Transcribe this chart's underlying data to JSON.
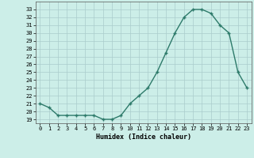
{
  "x": [
    0,
    1,
    2,
    3,
    4,
    5,
    6,
    7,
    8,
    9,
    10,
    11,
    12,
    13,
    14,
    15,
    16,
    17,
    18,
    19,
    20,
    21,
    22,
    23
  ],
  "y": [
    21,
    20.5,
    19.5,
    19.5,
    19.5,
    19.5,
    19.5,
    19,
    19,
    19.5,
    21,
    22,
    23,
    25,
    27.5,
    30,
    32,
    33,
    33,
    32.5,
    31,
    30,
    25,
    23
  ],
  "line_color": "#2d7a6a",
  "marker_color": "#2d7a6a",
  "bg_color": "#cceee8",
  "grid_color": "#aacccc",
  "xlabel": "Humidex (Indice chaleur)",
  "xlim": [
    -0.5,
    23.5
  ],
  "ylim": [
    18.5,
    34
  ],
  "yticks": [
    19,
    20,
    21,
    22,
    23,
    24,
    25,
    26,
    27,
    28,
    29,
    30,
    31,
    32,
    33
  ],
  "xticks": [
    0,
    1,
    2,
    3,
    4,
    5,
    6,
    7,
    8,
    9,
    10,
    11,
    12,
    13,
    14,
    15,
    16,
    17,
    18,
    19,
    20,
    21,
    22,
    23
  ]
}
